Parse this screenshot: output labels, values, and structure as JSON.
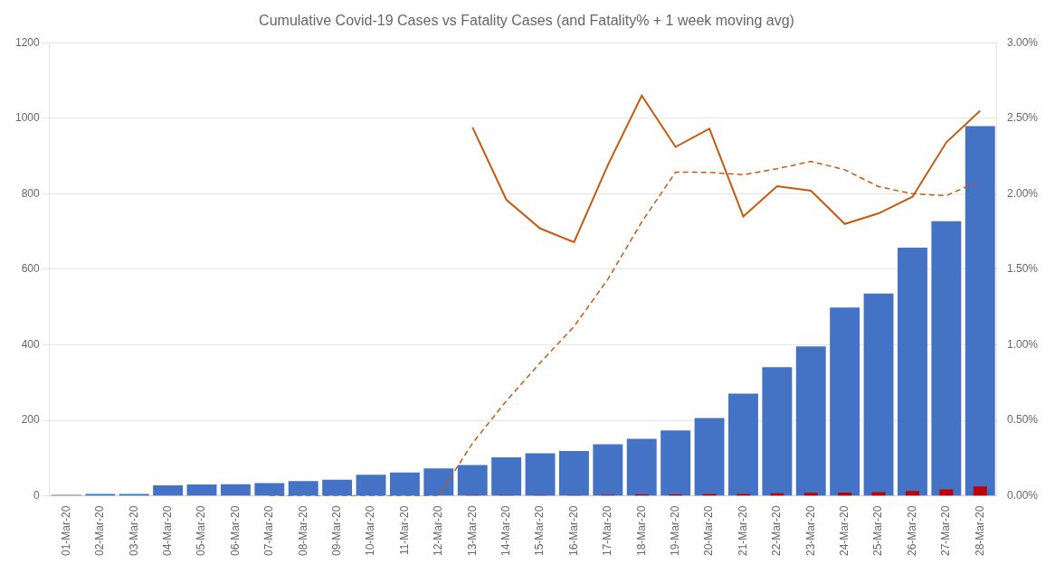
{
  "chart_data": {
    "type": "bar",
    "title": "Cumulative Covid-19 Cases vs Fatality Cases (and Fatality% + 1 week moving avg)",
    "categories": [
      "01-Mar-20",
      "02-Mar-20",
      "03-Mar-20",
      "04-Mar-20",
      "05-Mar-20",
      "06-Mar-20",
      "07-Mar-20",
      "08-Mar-20",
      "09-Mar-20",
      "10-Mar-20",
      "11-Mar-20",
      "12-Mar-20",
      "13-Mar-20",
      "14-Mar-20",
      "15-Mar-20",
      "16-Mar-20",
      "17-Mar-20",
      "18-Mar-20",
      "19-Mar-20",
      "20-Mar-20",
      "21-Mar-20",
      "22-Mar-20",
      "23-Mar-20",
      "24-Mar-20",
      "25-Mar-20",
      "26-Mar-20",
      "27-Mar-20",
      "28-Mar-20"
    ],
    "series": [
      {
        "name": "Covid-19 Cases",
        "type": "bar",
        "color": "#4472C4",
        "values": [
          3,
          5,
          5,
          28,
          30,
          31,
          34,
          39,
          43,
          56,
          62,
          73,
          82,
          102,
          113,
          119,
          137,
          151,
          173,
          206,
          271,
          341,
          396,
          499,
          536,
          657,
          727,
          979
        ]
      },
      {
        "name": "Fatality Cases",
        "type": "bar",
        "color": "#C00000",
        "values": [
          0,
          0,
          0,
          0,
          0,
          0,
          0,
          0,
          0,
          0,
          0,
          0,
          2,
          2,
          2,
          2,
          3,
          4,
          4,
          5,
          5,
          7,
          8,
          9,
          10,
          13,
          17,
          25
        ]
      },
      {
        "name": "Fatality%",
        "type": "line",
        "axis": "y2",
        "color": "#C55A11",
        "line_style": "solid",
        "marker": "none",
        "values": [
          null,
          null,
          null,
          null,
          null,
          null,
          null,
          null,
          null,
          null,
          null,
          null,
          0.0244,
          0.0196,
          0.0177,
          0.0168,
          0.0219,
          0.0265,
          0.0231,
          0.0243,
          0.0185,
          0.0205,
          0.0202,
          0.018,
          0.0187,
          0.0198,
          0.0234,
          0.0255
        ]
      },
      {
        "name": "1 week moving avg",
        "type": "line",
        "axis": "y2",
        "color": "#C55A11",
        "line_style": "dashed",
        "marker": "none",
        "values": [
          null,
          null,
          null,
          null,
          null,
          null,
          0,
          0,
          0,
          0,
          0,
          0,
          0.00348571428571,
          0.00628571428571,
          0.00881428571429,
          0.0112142857143,
          0.0143428571429,
          0.0181285714286,
          0.0214285714286,
          0.0214142857143,
          0.0212571428571,
          0.0216571428571,
          0.0221428571429,
          0.0215857142857,
          0.0204714285714,
          0.02,
          0.0198714285714,
          0.0208714285714
        ]
      }
    ],
    "ylim": [
      0,
      1200
    ],
    "yticks": [
      0,
      200,
      400,
      600,
      800,
      1000,
      1200
    ],
    "y2lim": [
      0.0,
      0.03
    ],
    "y2ticks": [
      {
        "value": 0.0,
        "label": "0.00%"
      },
      {
        "value": 0.005,
        "label": "0.50%"
      },
      {
        "value": 0.01,
        "label": "1.00%"
      },
      {
        "value": 0.015,
        "label": "1.50%"
      },
      {
        "value": 0.02,
        "label": "2.00%"
      },
      {
        "value": 0.025,
        "label": "2.50%"
      },
      {
        "value": 0.03,
        "label": "3.00%"
      }
    ],
    "grid": true
  }
}
